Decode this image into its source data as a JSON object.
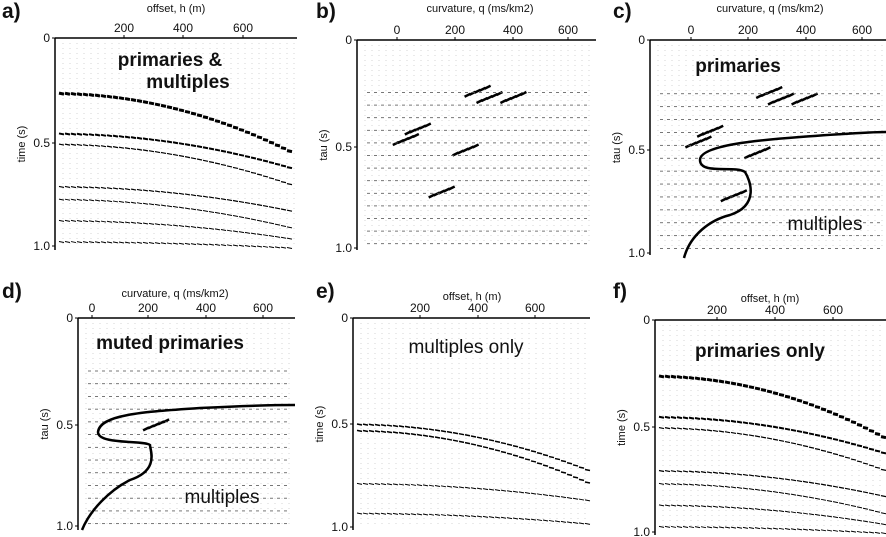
{
  "panels": [
    {
      "letter": "a)",
      "x_axis_label": "offset, h (m)",
      "x_ticks": [
        "200",
        "400",
        "600"
      ],
      "y_axis_label": "time (s)",
      "y_ticks": [
        "0",
        "0.5",
        "1.0"
      ],
      "annotations": [
        "primaries &",
        "multiples"
      ]
    },
    {
      "letter": "b)",
      "x_axis_label": "curvature, q (ms/km2)",
      "x_ticks": [
        "0",
        "200",
        "400",
        "600"
      ],
      "y_axis_label": "tau (s)",
      "y_ticks": [
        "0",
        "0.5",
        "1.0"
      ],
      "annotations": []
    },
    {
      "letter": "c)",
      "x_axis_label": "curvature, q (ms/km2)",
      "x_ticks": [
        "0",
        "200",
        "400",
        "600"
      ],
      "y_axis_label": "tau (s)",
      "y_ticks": [
        "0",
        "0.5",
        "1.0"
      ],
      "annotations": [
        "primaries",
        "multiples"
      ]
    },
    {
      "letter": "d)",
      "x_axis_label": "curvature, q (ms/km2)",
      "x_ticks": [
        "0",
        "200",
        "400",
        "600"
      ],
      "y_axis_label": "tau (s)",
      "y_ticks": [
        "0",
        "0.5",
        "1.0"
      ],
      "annotations": [
        "muted primaries",
        "multiples"
      ]
    },
    {
      "letter": "e)",
      "x_axis_label": "offset, h (m)",
      "x_ticks": [
        "200",
        "400",
        "600"
      ],
      "y_axis_label": "time (s)",
      "y_ticks": [
        "0",
        "0.5",
        "1.0"
      ],
      "annotations": [
        "multiples only"
      ]
    },
    {
      "letter": "f)",
      "x_axis_label": "offset, h (m)",
      "x_ticks": [
        "200",
        "400",
        "600"
      ],
      "y_axis_label": "time (s)",
      "y_ticks": [
        "0",
        "0.5",
        "1.0"
      ],
      "annotations": [
        "primaries only"
      ]
    }
  ]
}
